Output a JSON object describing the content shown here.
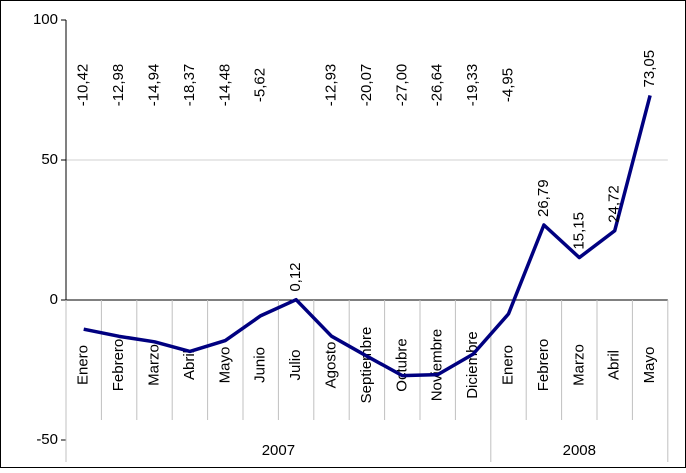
{
  "chart_data": {
    "type": "line",
    "categories": [
      "Enero",
      "Febrero",
      "Marzo",
      "Abril",
      "Mayo",
      "Junio",
      "Julio",
      "Agosto",
      "Septiembre",
      "Octubre",
      "Noviembre",
      "Diciembre",
      "Enero",
      "Febrero",
      "Marzo",
      "Abril",
      "Mayo"
    ],
    "groups": [
      {
        "label": "2007",
        "size": 12
      },
      {
        "label": "2008",
        "size": 5
      }
    ],
    "series": [
      {
        "color": "#000080",
        "values": [
          -10.42,
          -12.98,
          -14.94,
          -18.37,
          -14.48,
          -5.62,
          0.12,
          -12.93,
          -20.07,
          -27.0,
          -26.64,
          -19.33,
          -4.95,
          26.79,
          15.15,
          24.72,
          73.05
        ],
        "value_labels": [
          "-10,42",
          "-12,98",
          "-14,94",
          "-18,37",
          "-14,48",
          "-5,62",
          "0,12",
          "-12,93",
          "-20,07",
          "-27,00",
          "-26,64",
          "-19,33",
          "-4,95",
          "26,79",
          "15,15",
          "24,72",
          "73,05"
        ]
      }
    ],
    "ylim": [
      -50,
      100
    ],
    "yticks": [
      -50,
      0,
      50,
      100
    ],
    "grid": true
  }
}
